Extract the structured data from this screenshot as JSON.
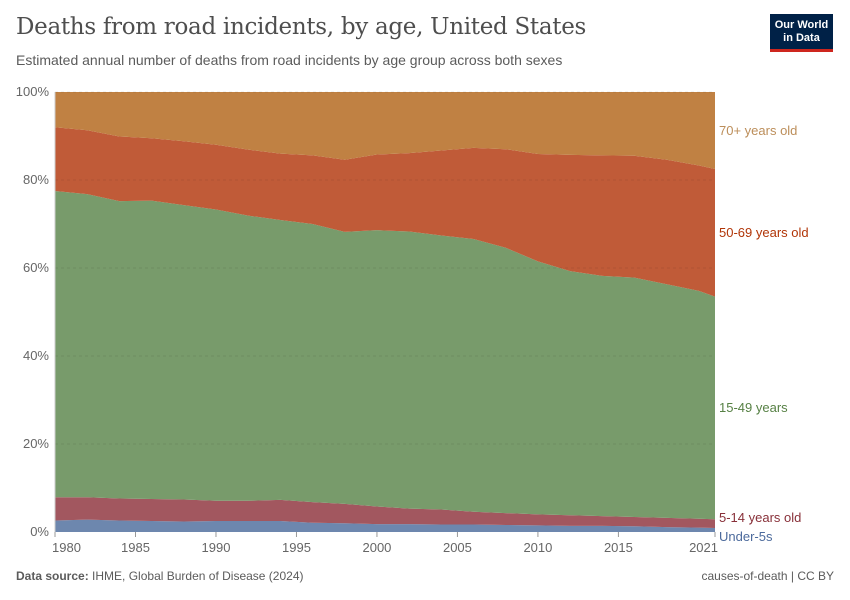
{
  "header": {
    "title": "Deaths from road incidents, by age, United States",
    "subtitle": "Estimated annual number of deaths from road incidents by age group across both sexes",
    "logo_text": "Our World in Data"
  },
  "footer": {
    "source_label": "Data source:",
    "source": "IHME, Global Burden of Disease (2024)",
    "license": "causes-of-death | CC BY"
  },
  "chart_data": {
    "type": "area",
    "stacked": "percent",
    "title": "Deaths from road incidents, by age, United States",
    "xlabel": "",
    "ylabel": "",
    "ylim": [
      0,
      100
    ],
    "xlim": [
      1980,
      2021
    ],
    "grid": "horizontal dashed",
    "legend": "right (inline labels)",
    "y_ticks": [
      "0%",
      "20%",
      "40%",
      "60%",
      "80%",
      "100%"
    ],
    "y_tick_values": [
      0,
      20,
      40,
      60,
      80,
      100
    ],
    "x_ticks": [
      "1980",
      "1985",
      "1990",
      "1995",
      "2000",
      "2005",
      "2010",
      "2015",
      "2021"
    ],
    "x_tick_values": [
      1980,
      1985,
      1990,
      1995,
      2000,
      2005,
      2010,
      2015,
      2021
    ],
    "x": [
      1980,
      1982,
      1984,
      1986,
      1988,
      1990,
      1992,
      1994,
      1996,
      1998,
      2000,
      2002,
      2004,
      2006,
      2008,
      2010,
      2012,
      2014,
      2016,
      2018,
      2020,
      2021
    ],
    "series": [
      {
        "name": "Under-5s",
        "color": "#6D87AE",
        "label_color": "#4C6A9C",
        "values": [
          2.6,
          2.8,
          2.6,
          2.5,
          2.4,
          2.5,
          2.5,
          2.5,
          2.1,
          2.0,
          1.8,
          1.8,
          1.7,
          1.7,
          1.6,
          1.5,
          1.4,
          1.4,
          1.3,
          1.1,
          1.0,
          0.9
        ]
      },
      {
        "name": "5-14 years old",
        "color": "#A2575F",
        "label_color": "#883039",
        "values": [
          5.3,
          5.1,
          5.0,
          5.0,
          5.0,
          4.6,
          4.6,
          4.8,
          4.7,
          4.4,
          4.0,
          3.5,
          3.4,
          2.9,
          2.7,
          2.5,
          2.4,
          2.2,
          2.1,
          2.1,
          2.0,
          2.0
        ]
      },
      {
        "name": "15-49 years",
        "color": "#789B6B",
        "label_color": "#578145",
        "values": [
          69.6,
          68.9,
          67.6,
          67.8,
          66.9,
          66.2,
          64.8,
          63.6,
          63.2,
          61.8,
          62.8,
          63.0,
          62.3,
          62.0,
          60.3,
          57.5,
          55.5,
          54.6,
          54.4,
          53.1,
          51.8,
          50.6
        ]
      },
      {
        "name": "50-69 years old",
        "color": "#C05B38",
        "label_color": "#B13507",
        "values": [
          14.5,
          14.5,
          14.7,
          14.2,
          14.5,
          14.7,
          15.0,
          15.1,
          15.6,
          16.4,
          17.2,
          17.8,
          19.3,
          20.7,
          22.4,
          24.4,
          26.4,
          27.4,
          27.7,
          28.3,
          28.5,
          29.0
        ]
      },
      {
        "name": "70+ years old",
        "color": "#C08143",
        "label_color": "#BC8E5A",
        "values": [
          8.0,
          8.7,
          10.1,
          10.5,
          11.2,
          12.0,
          13.1,
          14.0,
          14.4,
          15.4,
          14.2,
          13.9,
          13.3,
          12.7,
          13.0,
          14.1,
          14.3,
          14.4,
          14.5,
          15.4,
          16.7,
          17.5
        ]
      }
    ]
  }
}
